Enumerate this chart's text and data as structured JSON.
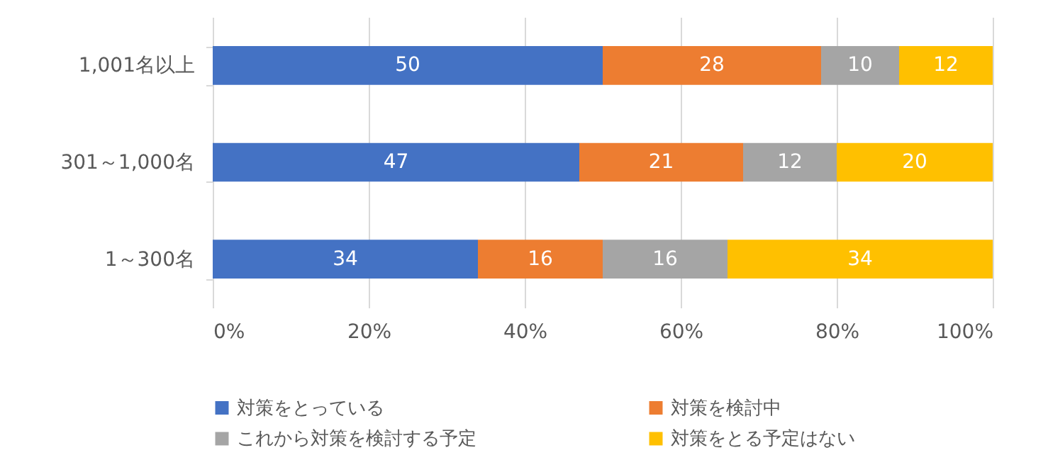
{
  "chart_data": {
    "type": "bar",
    "orientation": "horizontal",
    "stacked": true,
    "categories": [
      "1,001名以上",
      "301～1,000名",
      "1～300名"
    ],
    "series": [
      {
        "name": "対策をとっている",
        "color": "#4472c4",
        "values": [
          50,
          47,
          34
        ]
      },
      {
        "name": "対策を検討中",
        "color": "#ed7d31",
        "values": [
          28,
          21,
          16
        ]
      },
      {
        "name": "これから対策を検討する予定",
        "color": "#a5a5a5",
        "values": [
          10,
          12,
          16
        ]
      },
      {
        "name": "対策をとる予定はない",
        "color": "#ffc000",
        "values": [
          12,
          20,
          34
        ]
      }
    ],
    "xlim": [
      0,
      100
    ],
    "xticks": [
      {
        "value": 0,
        "label": "0%"
      },
      {
        "value": 20,
        "label": "20%"
      },
      {
        "value": 40,
        "label": "40%"
      },
      {
        "value": 60,
        "label": "60%"
      },
      {
        "value": 80,
        "label": "80%"
      },
      {
        "value": 100,
        "label": "100%"
      }
    ],
    "grid": "x",
    "legend": "bottom",
    "data_labels": true
  }
}
